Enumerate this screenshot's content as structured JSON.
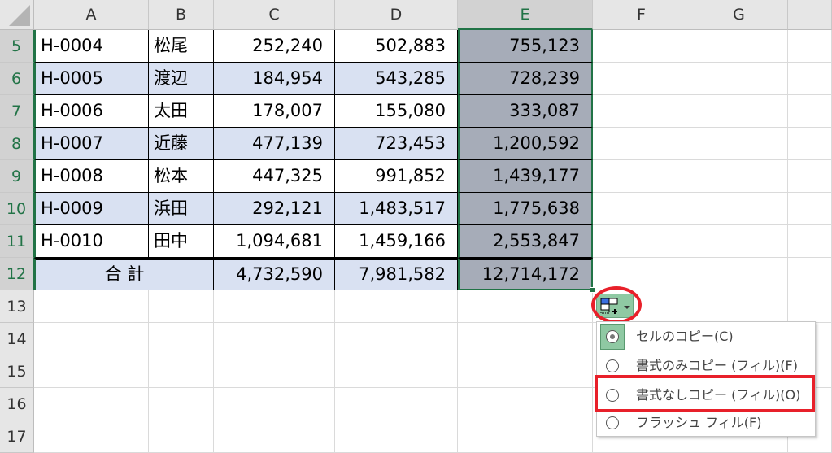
{
  "columns": [
    "A",
    "B",
    "C",
    "D",
    "E",
    "F",
    "G"
  ],
  "selected_column": "E",
  "rows": [
    {
      "num": "5",
      "id": "H-0004",
      "name": "松尾",
      "c": "252,240",
      "d": "502,883",
      "e": "755,123"
    },
    {
      "num": "6",
      "id": "H-0005",
      "name": "渡辺",
      "c": "184,954",
      "d": "543,285",
      "e": "728,239"
    },
    {
      "num": "7",
      "id": "H-0006",
      "name": "太田",
      "c": "178,007",
      "d": "155,080",
      "e": "333,087"
    },
    {
      "num": "8",
      "id": "H-0007",
      "name": "近藤",
      "c": "477,139",
      "d": "723,453",
      "e": "1,200,592"
    },
    {
      "num": "9",
      "id": "H-0008",
      "name": "松本",
      "c": "447,325",
      "d": "991,852",
      "e": "1,439,177"
    },
    {
      "num": "10",
      "id": "H-0009",
      "name": "浜田",
      "c": "292,121",
      "d": "1,483,517",
      "e": "1,775,638"
    },
    {
      "num": "11",
      "id": "H-0010",
      "name": "田中",
      "c": "1,094,681",
      "d": "1,459,166",
      "e": "2,553,847"
    }
  ],
  "total": {
    "num": "12",
    "label": "合 計",
    "c": "4,732,590",
    "d": "7,981,582",
    "e": "12,714,172"
  },
  "empty_rows": [
    "13",
    "14",
    "15",
    "16",
    "17"
  ],
  "autofill": {
    "button_icon": "auto-fill-options-icon",
    "options": [
      {
        "label": "セルのコピー(C)",
        "selected": true
      },
      {
        "label": "書式のみコピー (フィル)(F)",
        "selected": false
      },
      {
        "label": "書式なしコピー (フィル)(O)",
        "selected": false,
        "highlighted": true
      },
      {
        "label": "フラッシュ フィル(F)",
        "selected": false
      }
    ]
  },
  "colors": {
    "band": "#d9e1f2",
    "selection": "#a6acb8",
    "accent": "#217346",
    "highlight": "#e8202a",
    "button": "#8fc9a3"
  }
}
